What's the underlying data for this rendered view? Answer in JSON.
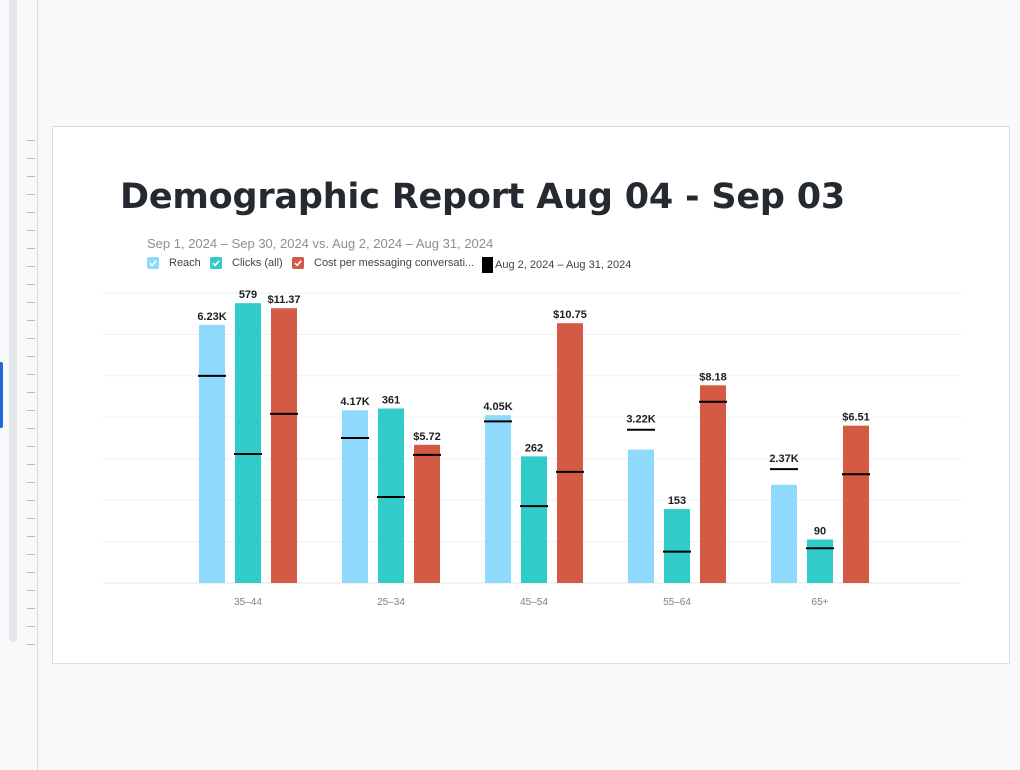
{
  "colors": {
    "reach": "#8ed9fc",
    "clicks": "#31ccc9",
    "cost": "#d35b43",
    "comparison": "#000000"
  },
  "header": {
    "title": "Demographic Report Aug 04 - Sep 03",
    "subtitle": "Sep 1, 2024 – Sep 30, 2024 vs. Aug 2, 2024 – Aug 31, 2024"
  },
  "legend": {
    "reach": "Reach",
    "clicks": "Clicks (all)",
    "cost": "Cost per messaging conversati...",
    "comparison": "Aug 2, 2024 – Aug 31, 2024"
  },
  "chart_data": {
    "type": "bar",
    "xlabel": "",
    "ylabel": "",
    "grid": true,
    "categories": [
      "35–44",
      "25–34",
      "45–54",
      "55–64",
      "65+"
    ],
    "series": [
      {
        "name": "Reach",
        "values": [
          6230,
          4170,
          4050,
          3220,
          2370
        ],
        "labels": [
          "6.23K",
          "4.17K",
          "4.05K",
          "3.22K",
          "2.37K"
        ],
        "comparison": [
          5000,
          3500,
          3900,
          3700,
          2750
        ],
        "ylim": [
          0,
          7000
        ]
      },
      {
        "name": "Clicks (all)",
        "values": [
          579,
          361,
          262,
          153,
          90
        ],
        "labels": [
          "579",
          "361",
          "262",
          "153",
          "90"
        ],
        "comparison": [
          267,
          178,
          159,
          65,
          72
        ],
        "ylim": [
          0,
          600
        ]
      },
      {
        "name": "Cost per messaging conversati...",
        "values": [
          11.37,
          5.72,
          10.75,
          8.18,
          6.51
        ],
        "labels": [
          "$11.37",
          "$5.72",
          "$10.75",
          "$8.18",
          "$6.51"
        ],
        "comparison": [
          7.0,
          5.3,
          4.6,
          7.5,
          4.5
        ],
        "ylim": [
          0,
          12
        ]
      }
    ]
  }
}
